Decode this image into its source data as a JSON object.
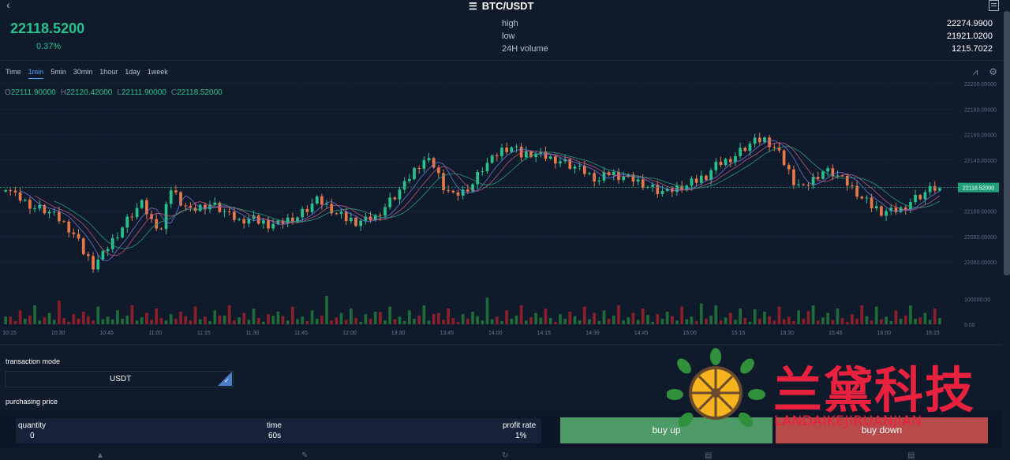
{
  "header": {
    "title": "BTC/USDT",
    "back_icon": "chevron-left-icon",
    "menu_icon": "list-icon",
    "doc_icon": "document-icon"
  },
  "summary": {
    "price": "22118.5200",
    "change": "0.37%",
    "stats": [
      {
        "label": "high",
        "value": "22274.9900"
      },
      {
        "label": "low",
        "value": "21921.0200"
      },
      {
        "label": "24H volume",
        "value": "1215.7022"
      }
    ]
  },
  "intervals": {
    "items": [
      "Time",
      "1min",
      "5min",
      "30min",
      "1hour",
      "1day",
      "1week"
    ],
    "active": "1min"
  },
  "ohlc": {
    "o_label": "O",
    "o_value": "22111.90000",
    "h_label": "H",
    "h_value": "22120.42000",
    "l_label": "L",
    "l_value": "22111.90000",
    "c_label": "C",
    "c_value": "22118.52000"
  },
  "chart_data": {
    "type": "candlestick",
    "last_price_label": "22118.52000",
    "last_price": 22118.52,
    "y_ticks": [
      "22200.00000",
      "22180.00000",
      "22160.00000",
      "22140.00000",
      "22120.00000",
      "22100.00000",
      "22080.00000",
      "22060.00000"
    ],
    "y_tick_values": [
      22200,
      22180,
      22160,
      22140,
      22120,
      22100,
      22080,
      22060
    ],
    "ylim": [
      22049,
      22200
    ],
    "volume_ticks": [
      "100000.00",
      "0.00"
    ],
    "x_ticks": [
      "10:15",
      "10:30",
      "10:45",
      "11:00",
      "11:15",
      "11:30",
      "11:45",
      "12:00",
      "13:30",
      "13:45",
      "14:00",
      "14:15",
      "14:30",
      "14:45",
      "15:00",
      "15:15",
      "15:30",
      "15:45",
      "16:00",
      "16:15"
    ],
    "close_path": [
      22120,
      22112,
      22108,
      22103,
      22101,
      22096,
      22090,
      22082,
      22068,
      22058,
      22066,
      22078,
      22088,
      22098,
      22105,
      22092,
      22086,
      22118,
      22108,
      22100,
      22104,
      22106,
      22102,
      22096,
      22092,
      22094,
      22092,
      22090,
      22090,
      22094,
      22096,
      22102,
      22108,
      22104,
      22098,
      22094,
      22092,
      22093,
      22096,
      22104,
      22112,
      22120,
      22132,
      22140,
      22136,
      22120,
      22112,
      22116,
      22122,
      22134,
      22140,
      22148,
      22150,
      22144,
      22146,
      22144,
      22142,
      22140,
      22136,
      22132,
      22128,
      22124,
      22130,
      22128,
      22126,
      22124,
      22120,
      22116,
      22114,
      22118,
      22120,
      22124,
      22128,
      22136,
      22140,
      22144,
      22150,
      22154,
      22156,
      22150,
      22138,
      22124,
      22118,
      22126,
      22132,
      22130,
      22124,
      22118,
      22110,
      22104,
      22100,
      22100,
      22102,
      22108,
      22112,
      22116,
      22118
    ],
    "candles_per_step": 2,
    "volume_pattern": [
      8,
      12,
      5,
      22,
      9,
      14,
      30,
      6,
      11,
      18,
      7,
      25,
      10,
      4,
      16,
      9,
      20,
      13,
      6,
      28
    ],
    "ma_lines": [
      {
        "color": "#6f74d6"
      },
      {
        "color": "#c05580"
      },
      {
        "color": "#2a9a7c"
      }
    ]
  },
  "colors": {
    "up": "#27c28d",
    "down": "#e8774a",
    "vol_up": "#1f6b3a",
    "vol_down": "#8c1f2a",
    "accent": "#4aa3ff"
  },
  "tools": {
    "indicator_icon": "chart-indicator-icon",
    "settings_icon": "gear-icon"
  },
  "trade": {
    "mode_label": "transaction mode",
    "mode_value": "USDT",
    "purchasing_label": "purchasing price",
    "quantity_label": "quantity",
    "quantity_value": "0",
    "time_label": "time",
    "time_value": "60s",
    "profit_label": "profit rate",
    "profit_value": "1%",
    "buy_up": "buy up",
    "buy_down": "buy down"
  },
  "nav": {
    "icons": [
      "home-icon",
      "chart-icon",
      "refresh-icon",
      "wallet-icon",
      "user-icon"
    ]
  },
  "watermark": {
    "text": "兰黛科技",
    "sub": "LANDAIKEJIRUANJIAN"
  }
}
